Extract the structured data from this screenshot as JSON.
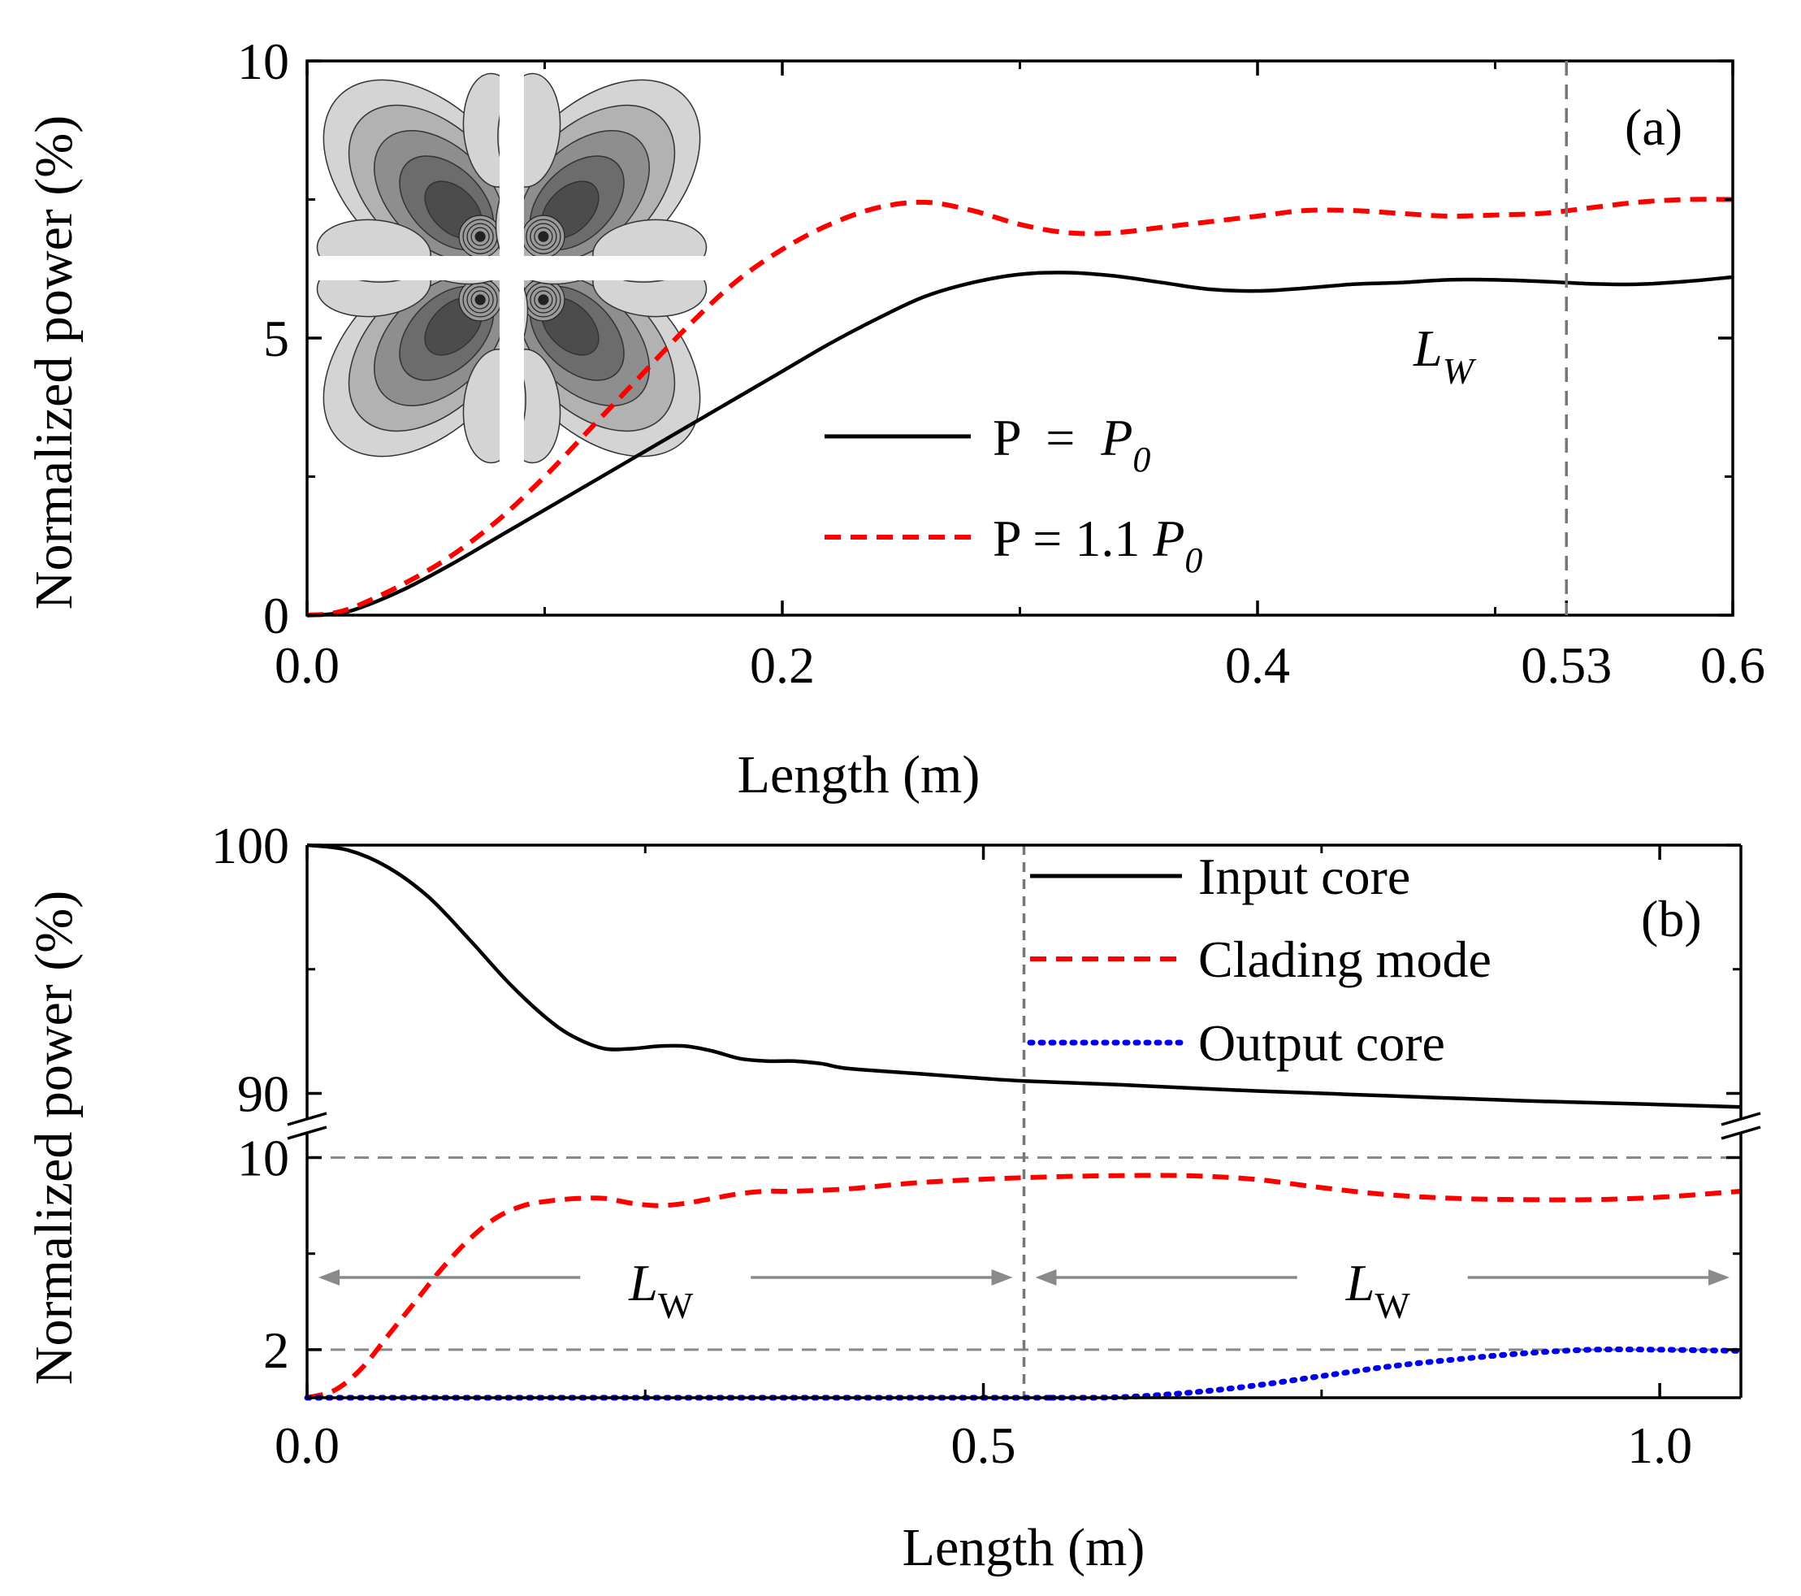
{
  "chart_data": [
    {
      "type": "line",
      "panel_label": "(a)",
      "xlabel": "Length (m)",
      "ylabel": "Normalized power (%)",
      "xlim": [
        0,
        0.6
      ],
      "ylim": [
        0,
        10
      ],
      "x_ticks": [
        0.0,
        0.2,
        0.4,
        0.53,
        0.6
      ],
      "x_tick_labels": [
        "0.0",
        "0.2",
        "0.4",
        "0.53",
        "0.6"
      ],
      "y_ticks": [
        0,
        5,
        10
      ],
      "y_tick_labels": [
        "0",
        "5",
        "10"
      ],
      "marker_line": {
        "x": 0.53,
        "label": "L",
        "label_sub": "W"
      },
      "inset": "mode-field-contour-four-lobe",
      "series": [
        {
          "name": "P = P0",
          "legend_main": "P  =  ",
          "legend_var": "P",
          "legend_sub": "0",
          "color": "#000000",
          "style": "solid",
          "points": [
            [
              0,
              0
            ],
            [
              0.01,
              0.02
            ],
            [
              0.02,
              0.1
            ],
            [
              0.04,
              0.45
            ],
            [
              0.06,
              0.9
            ],
            [
              0.08,
              1.4
            ],
            [
              0.1,
              1.9
            ],
            [
              0.12,
              2.4
            ],
            [
              0.14,
              2.9
            ],
            [
              0.16,
              3.4
            ],
            [
              0.18,
              3.9
            ],
            [
              0.2,
              4.4
            ],
            [
              0.22,
              4.9
            ],
            [
              0.24,
              5.35
            ],
            [
              0.26,
              5.75
            ],
            [
              0.28,
              6.0
            ],
            [
              0.3,
              6.15
            ],
            [
              0.32,
              6.18
            ],
            [
              0.34,
              6.12
            ],
            [
              0.36,
              6.0
            ],
            [
              0.38,
              5.88
            ],
            [
              0.4,
              5.85
            ],
            [
              0.42,
              5.9
            ],
            [
              0.44,
              5.97
            ],
            [
              0.46,
              6.0
            ],
            [
              0.48,
              6.05
            ],
            [
              0.5,
              6.05
            ],
            [
              0.52,
              6.02
            ],
            [
              0.54,
              5.98
            ],
            [
              0.56,
              5.97
            ],
            [
              0.58,
              6.02
            ],
            [
              0.6,
              6.1
            ]
          ]
        },
        {
          "name": "P = 1.1 P0",
          "legend_main": "P = 1.1 ",
          "legend_var": "P",
          "legend_sub": "0",
          "color": "#ff0000",
          "style": "dashed",
          "points": [
            [
              0,
              0
            ],
            [
              0.01,
              0.03
            ],
            [
              0.02,
              0.15
            ],
            [
              0.04,
              0.55
            ],
            [
              0.06,
              1.05
            ],
            [
              0.08,
              1.7
            ],
            [
              0.1,
              2.5
            ],
            [
              0.12,
              3.4
            ],
            [
              0.14,
              4.3
            ],
            [
              0.16,
              5.2
            ],
            [
              0.18,
              6.0
            ],
            [
              0.2,
              6.6
            ],
            [
              0.22,
              7.05
            ],
            [
              0.24,
              7.35
            ],
            [
              0.26,
              7.45
            ],
            [
              0.28,
              7.3
            ],
            [
              0.3,
              7.05
            ],
            [
              0.32,
              6.9
            ],
            [
              0.34,
              6.9
            ],
            [
              0.36,
              7.0
            ],
            [
              0.38,
              7.1
            ],
            [
              0.4,
              7.2
            ],
            [
              0.42,
              7.3
            ],
            [
              0.44,
              7.3
            ],
            [
              0.46,
              7.25
            ],
            [
              0.48,
              7.2
            ],
            [
              0.5,
              7.22
            ],
            [
              0.52,
              7.25
            ],
            [
              0.54,
              7.35
            ],
            [
              0.56,
              7.45
            ],
            [
              0.58,
              7.5
            ],
            [
              0.6,
              7.5
            ]
          ]
        }
      ]
    },
    {
      "type": "line",
      "panel_label": "(b)",
      "xlabel": "Length (m)",
      "ylabel": "Normalized power (%)",
      "xlim": [
        0,
        1.06
      ],
      "y_axis_broken": true,
      "upper_ylim": [
        89,
        100
      ],
      "lower_ylim": [
        0,
        11
      ],
      "x_ticks": [
        0.0,
        0.5,
        1.0
      ],
      "x_tick_labels": [
        "0.0",
        "0.5",
        "1.0"
      ],
      "y_ticks_upper": [
        90,
        100
      ],
      "y_tick_labels_upper": [
        "90",
        "100"
      ],
      "y_ticks_lower": [
        2,
        10
      ],
      "y_tick_labels_lower": [
        "2",
        "10"
      ],
      "reference_lines": [
        2,
        10
      ],
      "marker_line": {
        "x": 0.53
      },
      "span_annotations": [
        {
          "from": 0,
          "to": 0.53,
          "label": "L",
          "label_sub": "W"
        },
        {
          "from": 0.53,
          "to": 1.06,
          "label": "L",
          "label_sub": "W"
        }
      ],
      "series": [
        {
          "name": "Input core",
          "color": "#000000",
          "style": "solid",
          "points": [
            [
              0,
              100
            ],
            [
              0.03,
              99.8
            ],
            [
              0.06,
              99.1
            ],
            [
              0.09,
              97.9
            ],
            [
              0.12,
              96.2
            ],
            [
              0.15,
              94.4
            ],
            [
              0.18,
              92.9
            ],
            [
              0.2,
              92.2
            ],
            [
              0.22,
              91.8
            ],
            [
              0.24,
              91.8
            ],
            [
              0.26,
              91.9
            ],
            [
              0.28,
              91.9
            ],
            [
              0.3,
              91.7
            ],
            [
              0.32,
              91.4
            ],
            [
              0.34,
              91.3
            ],
            [
              0.36,
              91.3
            ],
            [
              0.38,
              91.2
            ],
            [
              0.4,
              91.0
            ],
            [
              0.45,
              90.8
            ],
            [
              0.5,
              90.6
            ],
            [
              0.53,
              90.5
            ],
            [
              0.6,
              90.35
            ],
            [
              0.7,
              90.1
            ],
            [
              0.8,
              89.9
            ],
            [
              0.9,
              89.7
            ],
            [
              1.0,
              89.55
            ],
            [
              1.06,
              89.45
            ]
          ]
        },
        {
          "name": "Clading mode",
          "color": "#ff0000",
          "style": "dashed",
          "points": [
            [
              0,
              0
            ],
            [
              0.02,
              0.3
            ],
            [
              0.04,
              1.2
            ],
            [
              0.06,
              2.6
            ],
            [
              0.08,
              4.0
            ],
            [
              0.1,
              5.4
            ],
            [
              0.12,
              6.6
            ],
            [
              0.14,
              7.5
            ],
            [
              0.16,
              8.0
            ],
            [
              0.18,
              8.2
            ],
            [
              0.2,
              8.3
            ],
            [
              0.22,
              8.3
            ],
            [
              0.24,
              8.1
            ],
            [
              0.26,
              8.0
            ],
            [
              0.28,
              8.1
            ],
            [
              0.3,
              8.3
            ],
            [
              0.32,
              8.5
            ],
            [
              0.34,
              8.6
            ],
            [
              0.36,
              8.6
            ],
            [
              0.4,
              8.7
            ],
            [
              0.45,
              8.95
            ],
            [
              0.5,
              9.1
            ],
            [
              0.55,
              9.2
            ],
            [
              0.6,
              9.25
            ],
            [
              0.65,
              9.25
            ],
            [
              0.7,
              9.1
            ],
            [
              0.75,
              8.75
            ],
            [
              0.8,
              8.45
            ],
            [
              0.85,
              8.3
            ],
            [
              0.9,
              8.25
            ],
            [
              0.95,
              8.25
            ],
            [
              1.0,
              8.35
            ],
            [
              1.06,
              8.6
            ]
          ]
        },
        {
          "name": "Output core",
          "color": "#0000ee",
          "style": "dotted",
          "points": [
            [
              0,
              0
            ],
            [
              0.5,
              0
            ],
            [
              0.55,
              0
            ],
            [
              0.6,
              0.02
            ],
            [
              0.65,
              0.2
            ],
            [
              0.7,
              0.5
            ],
            [
              0.75,
              0.9
            ],
            [
              0.8,
              1.3
            ],
            [
              0.85,
              1.6
            ],
            [
              0.9,
              1.85
            ],
            [
              0.95,
              2.0
            ],
            [
              1.0,
              2.0
            ],
            [
              1.06,
              1.95
            ]
          ]
        }
      ]
    }
  ]
}
